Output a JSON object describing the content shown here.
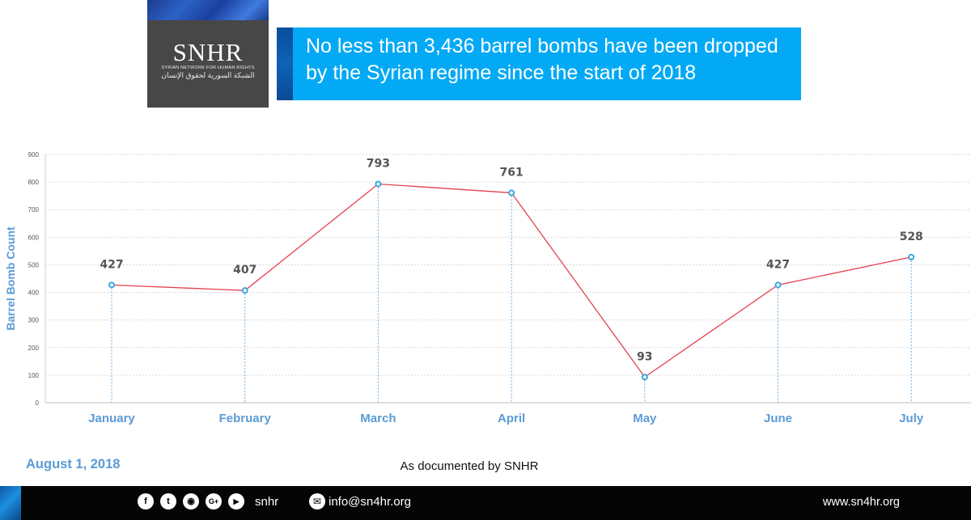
{
  "header": {
    "logo_wordmark": "SNHR",
    "logo_subtitle_en": "SYRIAN NETWORK FOR HUMAN RIGHTS",
    "logo_subtitle_ar": "الشبكة السورية لحقوق الإنسان",
    "banner_line1": "No less than 3,436 barrel bombs have been dropped",
    "banner_line2": "by the Syrian regime since the start of 2018",
    "banner_color": "#03a9f4"
  },
  "chart_data": {
    "type": "line",
    "title": "",
    "xlabel": "",
    "ylabel": "Barrel Bomb Count",
    "categories": [
      "January",
      "February",
      "March",
      "April",
      "May",
      "June",
      "July"
    ],
    "series": [
      {
        "values": [
          427,
          407,
          793,
          761,
          93,
          427,
          528
        ],
        "color": "#e5404f",
        "marker_color": "#38a6dc"
      }
    ],
    "data_labels": [
      "427",
      "407",
      "793",
      "761",
      "93",
      "427",
      "528"
    ],
    "ylim": [
      0,
      900
    ],
    "yticks": [
      "0",
      "100",
      "200",
      "300",
      "400",
      "500",
      "600",
      "700",
      "800",
      "900"
    ],
    "grid": true,
    "drop_lines": true,
    "legend": "none",
    "category_label_color": "#5b9bd5"
  },
  "meta": {
    "date": "August 1, 2018",
    "source": "As documented by SNHR"
  },
  "footer": {
    "social_icons": [
      "facebook-icon",
      "twitter-icon",
      "instagram-icon",
      "google-plus-icon",
      "youtube-icon"
    ],
    "handle": "snhr",
    "email": "info@sn4hr.org",
    "website": "www.sn4hr.org"
  }
}
